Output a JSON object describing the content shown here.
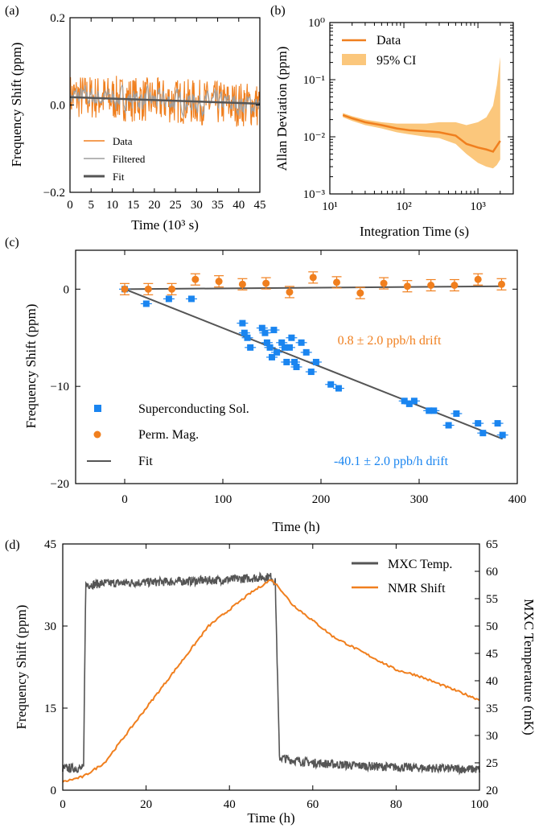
{
  "chart_data": [
    {
      "panel": "(a)",
      "type": "line",
      "xlabel": "Time (10³ s)",
      "ylabel": "Frequency Shift (ppm)",
      "xlim": [
        0,
        45
      ],
      "ylim": [
        -0.2,
        0.2
      ],
      "xticks": [
        "0",
        "5",
        "10",
        "15",
        "20",
        "25",
        "30",
        "35",
        "40",
        "45"
      ],
      "yticks": [
        "−0.2",
        "0.0",
        "0.2"
      ],
      "legend": [
        "Data",
        "Filtered",
        "Fit"
      ],
      "legend_position": "lower-left",
      "series": [
        {
          "name": "Data",
          "color": "#f07f1e",
          "noise_amplitude": 0.04,
          "mean_start": 0.02,
          "mean_end": 0.0
        },
        {
          "name": "Filtered",
          "color": "#9e9e9e",
          "noise_amplitude": 0.02,
          "mean_start": 0.02,
          "mean_end": 0.0
        },
        {
          "name": "Fit",
          "color": "#555555",
          "x": [
            0,
            45
          ],
          "y": [
            0.018,
            0.003
          ]
        }
      ]
    },
    {
      "panel": "(b)",
      "type": "line",
      "xscale": "log",
      "yscale": "log",
      "xlabel": "Integration Time (s)",
      "ylabel": "Allan Deviation (ppm)",
      "xlim": [
        10,
        3000
      ],
      "ylim": [
        0.001,
        1
      ],
      "xticks": [
        "10¹",
        "10²",
        "10³"
      ],
      "yticks": [
        "10⁻³",
        "10⁻²",
        "10⁻¹",
        "10⁰"
      ],
      "legend": [
        "Data",
        "95% CI"
      ],
      "legend_position": "top-left",
      "series": [
        {
          "name": "Data",
          "color": "#f07f1e",
          "x": [
            15,
            20,
            30,
            50,
            80,
            120,
            200,
            300,
            500,
            700,
            1000,
            1300,
            1600,
            2000
          ],
          "y": [
            0.024,
            0.021,
            0.018,
            0.016,
            0.014,
            0.013,
            0.0125,
            0.012,
            0.0105,
            0.0075,
            0.0065,
            0.006,
            0.0055,
            0.0085
          ]
        },
        {
          "name": "95% CI",
          "color": "#fbc77c",
          "x": [
            15,
            20,
            30,
            50,
            80,
            120,
            200,
            300,
            500,
            700,
            1000,
            1300,
            1600,
            1800,
            2000
          ],
          "upper": [
            0.026,
            0.023,
            0.02,
            0.018,
            0.017,
            0.017,
            0.017,
            0.018,
            0.018,
            0.016,
            0.018,
            0.022,
            0.035,
            0.08,
            0.25
          ],
          "lower": [
            0.022,
            0.019,
            0.016,
            0.014,
            0.012,
            0.011,
            0.01,
            0.0095,
            0.0075,
            0.005,
            0.0035,
            0.003,
            0.0028,
            0.0032,
            0.004
          ]
        }
      ]
    },
    {
      "panel": "(c)",
      "type": "scatter",
      "xlabel": "Time (h)",
      "ylabel": "Frequency Shift (ppm)",
      "xlim": [
        -50,
        400
      ],
      "ylim": [
        -20,
        4
      ],
      "xticks": [
        "0",
        "100",
        "200",
        "300",
        "400"
      ],
      "yticks": [
        "−20",
        "−10",
        "0"
      ],
      "legend": [
        "Superconducting Sol.",
        "Perm. Mag.",
        "Fit"
      ],
      "legend_position": "lower-left",
      "annotations": [
        "0.8 ± 2.0 ppb/h drift",
        "-40.1 ± 2.0 ppb/h drift"
      ],
      "series": [
        {
          "name": "Superconducting Sol.",
          "color": "#1a85f0",
          "marker": "square",
          "x": [
            0,
            22,
            45,
            68,
            120,
            122,
            125,
            128,
            140,
            143,
            145,
            148,
            150,
            152,
            155,
            160,
            163,
            165,
            168,
            170,
            173,
            175,
            180,
            185,
            190,
            195,
            210,
            218,
            285,
            290,
            295,
            310,
            315,
            330,
            338,
            360,
            365,
            380,
            385
          ],
          "y": [
            0.0,
            -1.5,
            -1.0,
            -1.0,
            -3.5,
            -4.5,
            -5.0,
            -6.0,
            -4.0,
            -4.5,
            -5.5,
            -6.0,
            -7.0,
            -4.2,
            -6.5,
            -5.5,
            -6.0,
            -7.5,
            -6.0,
            -5.0,
            -7.5,
            -8.0,
            -5.5,
            -6.5,
            -8.5,
            -7.5,
            -9.8,
            -10.2,
            -11.5,
            -11.8,
            -11.5,
            -12.5,
            -12.5,
            -14.0,
            -12.8,
            -13.8,
            -14.8,
            -13.8,
            -15.0
          ]
        },
        {
          "name": "Perm. Mag.",
          "color": "#f07f1e",
          "marker": "circle",
          "x": [
            0,
            24,
            48,
            72,
            96,
            120,
            144,
            168,
            192,
            216,
            240,
            264,
            288,
            312,
            336,
            360,
            384
          ],
          "y": [
            0.0,
            0.0,
            0.0,
            1.0,
            0.8,
            0.5,
            0.6,
            -0.3,
            1.2,
            0.7,
            -0.4,
            0.6,
            0.3,
            0.4,
            0.4,
            1.0,
            0.5
          ]
        },
        {
          "name": "Fit",
          "color": "#555555",
          "x": [
            0,
            385
          ],
          "y_superconducting": [
            0.0,
            -15.4
          ],
          "y_permanent": [
            0.0,
            0.3
          ]
        }
      ]
    },
    {
      "panel": "(d)",
      "type": "line",
      "xlabel": "Time (h)",
      "ylabel": "Frequency Shift (ppm)",
      "ylabel_right": "MXC Temperature (mK)",
      "xlim": [
        0,
        100
      ],
      "ylim": [
        0,
        45
      ],
      "ylim_right": [
        20,
        65
      ],
      "xticks": [
        "0",
        "20",
        "40",
        "60",
        "80",
        "100"
      ],
      "yticks": [
        "0",
        "15",
        "30",
        "45"
      ],
      "yticks_right": [
        "20",
        "25",
        "30",
        "35",
        "40",
        "45",
        "50",
        "55",
        "60",
        "65"
      ],
      "legend": [
        "MXC Temp.",
        "NMR Shift"
      ],
      "legend_position": "top-right",
      "series": [
        {
          "name": "MXC Temp.",
          "color": "#555555",
          "axis": "right",
          "x": [
            0,
            5,
            5.5,
            10,
            20,
            30,
            40,
            50,
            51,
            52,
            55,
            60,
            70,
            80,
            90,
            100
          ],
          "y": [
            24,
            24,
            57.5,
            57.8,
            58,
            58.2,
            58.5,
            59,
            58,
            26,
            25.5,
            25,
            24.5,
            24.2,
            24.0,
            23.8
          ]
        },
        {
          "name": "NMR Shift",
          "color": "#f07f1e",
          "axis": "left",
          "x": [
            0,
            5,
            10,
            15,
            20,
            25,
            30,
            35,
            40,
            45,
            50,
            52,
            55,
            60,
            65,
            70,
            75,
            80,
            85,
            90,
            95,
            100
          ],
          "y": [
            1.5,
            2.5,
            5,
            10,
            15,
            20,
            25,
            30,
            33,
            36,
            38.5,
            37,
            34,
            31,
            28,
            26,
            24,
            22,
            21,
            19.5,
            18,
            16.5
          ]
        }
      ]
    }
  ]
}
